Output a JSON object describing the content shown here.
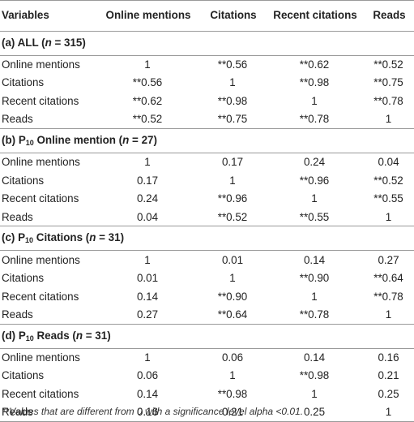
{
  "headers": [
    "Variables",
    "Online mentions",
    "Citations",
    "Recent citations",
    "Reads"
  ],
  "sections": [
    {
      "label_prefix": "(a) ALL (",
      "label_sub": "",
      "label_mid": "",
      "n_var": "n",
      "label_suffix": " = 315)",
      "rows": [
        {
          "label": "Online mentions",
          "values": [
            "1",
            "**0.56",
            "**0.62",
            "**0.52"
          ]
        },
        {
          "label": "Citations",
          "values": [
            "**0.56",
            "1",
            "**0.98",
            "**0.75"
          ]
        },
        {
          "label": "Recent citations",
          "values": [
            "**0.62",
            "**0.98",
            "1",
            "**0.78"
          ]
        },
        {
          "label": "Reads",
          "values": [
            "**0.52",
            "**0.75",
            "**0.78",
            "1"
          ]
        }
      ]
    },
    {
      "label_prefix": "(b) P",
      "label_sub": "10",
      "label_mid": " Online mention (",
      "n_var": "n",
      "label_suffix": " = 27)",
      "rows": [
        {
          "label": "Online mentions",
          "values": [
            "1",
            "0.17",
            "0.24",
            "0.04"
          ]
        },
        {
          "label": "Citations",
          "values": [
            "0.17",
            "1",
            "**0.96",
            "**0.52"
          ]
        },
        {
          "label": "Recent citations",
          "values": [
            "0.24",
            "**0.96",
            "1",
            "**0.55"
          ]
        },
        {
          "label": "Reads",
          "values": [
            "0.04",
            "**0.52",
            "**0.55",
            "1"
          ]
        }
      ]
    },
    {
      "label_prefix": "(c) P",
      "label_sub": "10",
      "label_mid": " Citations (",
      "n_var": "n",
      "label_suffix": " = 31)",
      "rows": [
        {
          "label": "Online mentions",
          "values": [
            "1",
            "0.01",
            "0.14",
            "0.27"
          ]
        },
        {
          "label": "Citations",
          "values": [
            "0.01",
            "1",
            "**0.90",
            "**0.64"
          ]
        },
        {
          "label": "Recent citations",
          "values": [
            "0.14",
            "**0.90",
            "1",
            "**0.78"
          ]
        },
        {
          "label": "Reads",
          "values": [
            "0.27",
            "**0.64",
            "**0.78",
            "1"
          ]
        }
      ]
    },
    {
      "label_prefix": "(d) P",
      "label_sub": "10",
      "label_mid": " Reads (",
      "n_var": "n",
      "label_suffix": " = 31)",
      "rows": [
        {
          "label": "Online mentions",
          "values": [
            "1",
            "0.06",
            "0.14",
            "0.16"
          ]
        },
        {
          "label": "Citations",
          "values": [
            "0.06",
            "1",
            "**0.98",
            "0.21"
          ]
        },
        {
          "label": "Recent citations",
          "values": [
            "0.14",
            "**0.98",
            "1",
            "0.25"
          ]
        },
        {
          "label": "Reads",
          "values": [
            "0.16",
            "0.21",
            "0.25",
            "1"
          ]
        }
      ]
    }
  ],
  "footnote": "**Values that are different from 0 with a significance level alpha <0.01."
}
